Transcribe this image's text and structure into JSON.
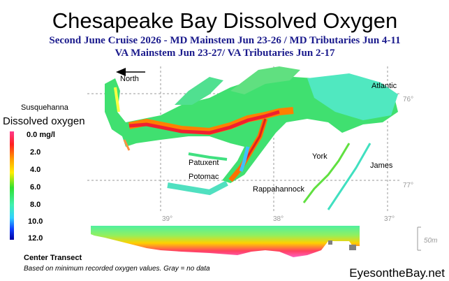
{
  "header": {
    "title": "Chesapeake Bay Dissolved Oxygen",
    "subtitle_lines": [
      "Second June Cruise 2026 - MD Mainstem Jun 23-26 / MD Tributaries Jun 4-11",
      "VA Mainstem Jun 23-27/  VA Tributaries Jun 2-17"
    ]
  },
  "map": {
    "labels": [
      "North",
      "Susquehanna",
      "Atlantic",
      "Patuxent",
      "Potomac",
      "Rappahannock",
      "York",
      "James"
    ],
    "grid_labels": [
      "76°",
      "77°",
      "39°",
      "38°",
      "37°"
    ]
  },
  "legend": {
    "title": "Dissolved oxygen",
    "labels": [
      "0.0 mg/l",
      "2.0",
      "4.0",
      "6.0",
      "8.0",
      "10.0",
      "12.0"
    ]
  },
  "transect": {
    "title": "Center Transect",
    "depth_label": "50m"
  },
  "footer": {
    "note": "Based on minimum recorded oxygen values. Gray = no data",
    "brand": "EyesontheBay.net"
  }
}
